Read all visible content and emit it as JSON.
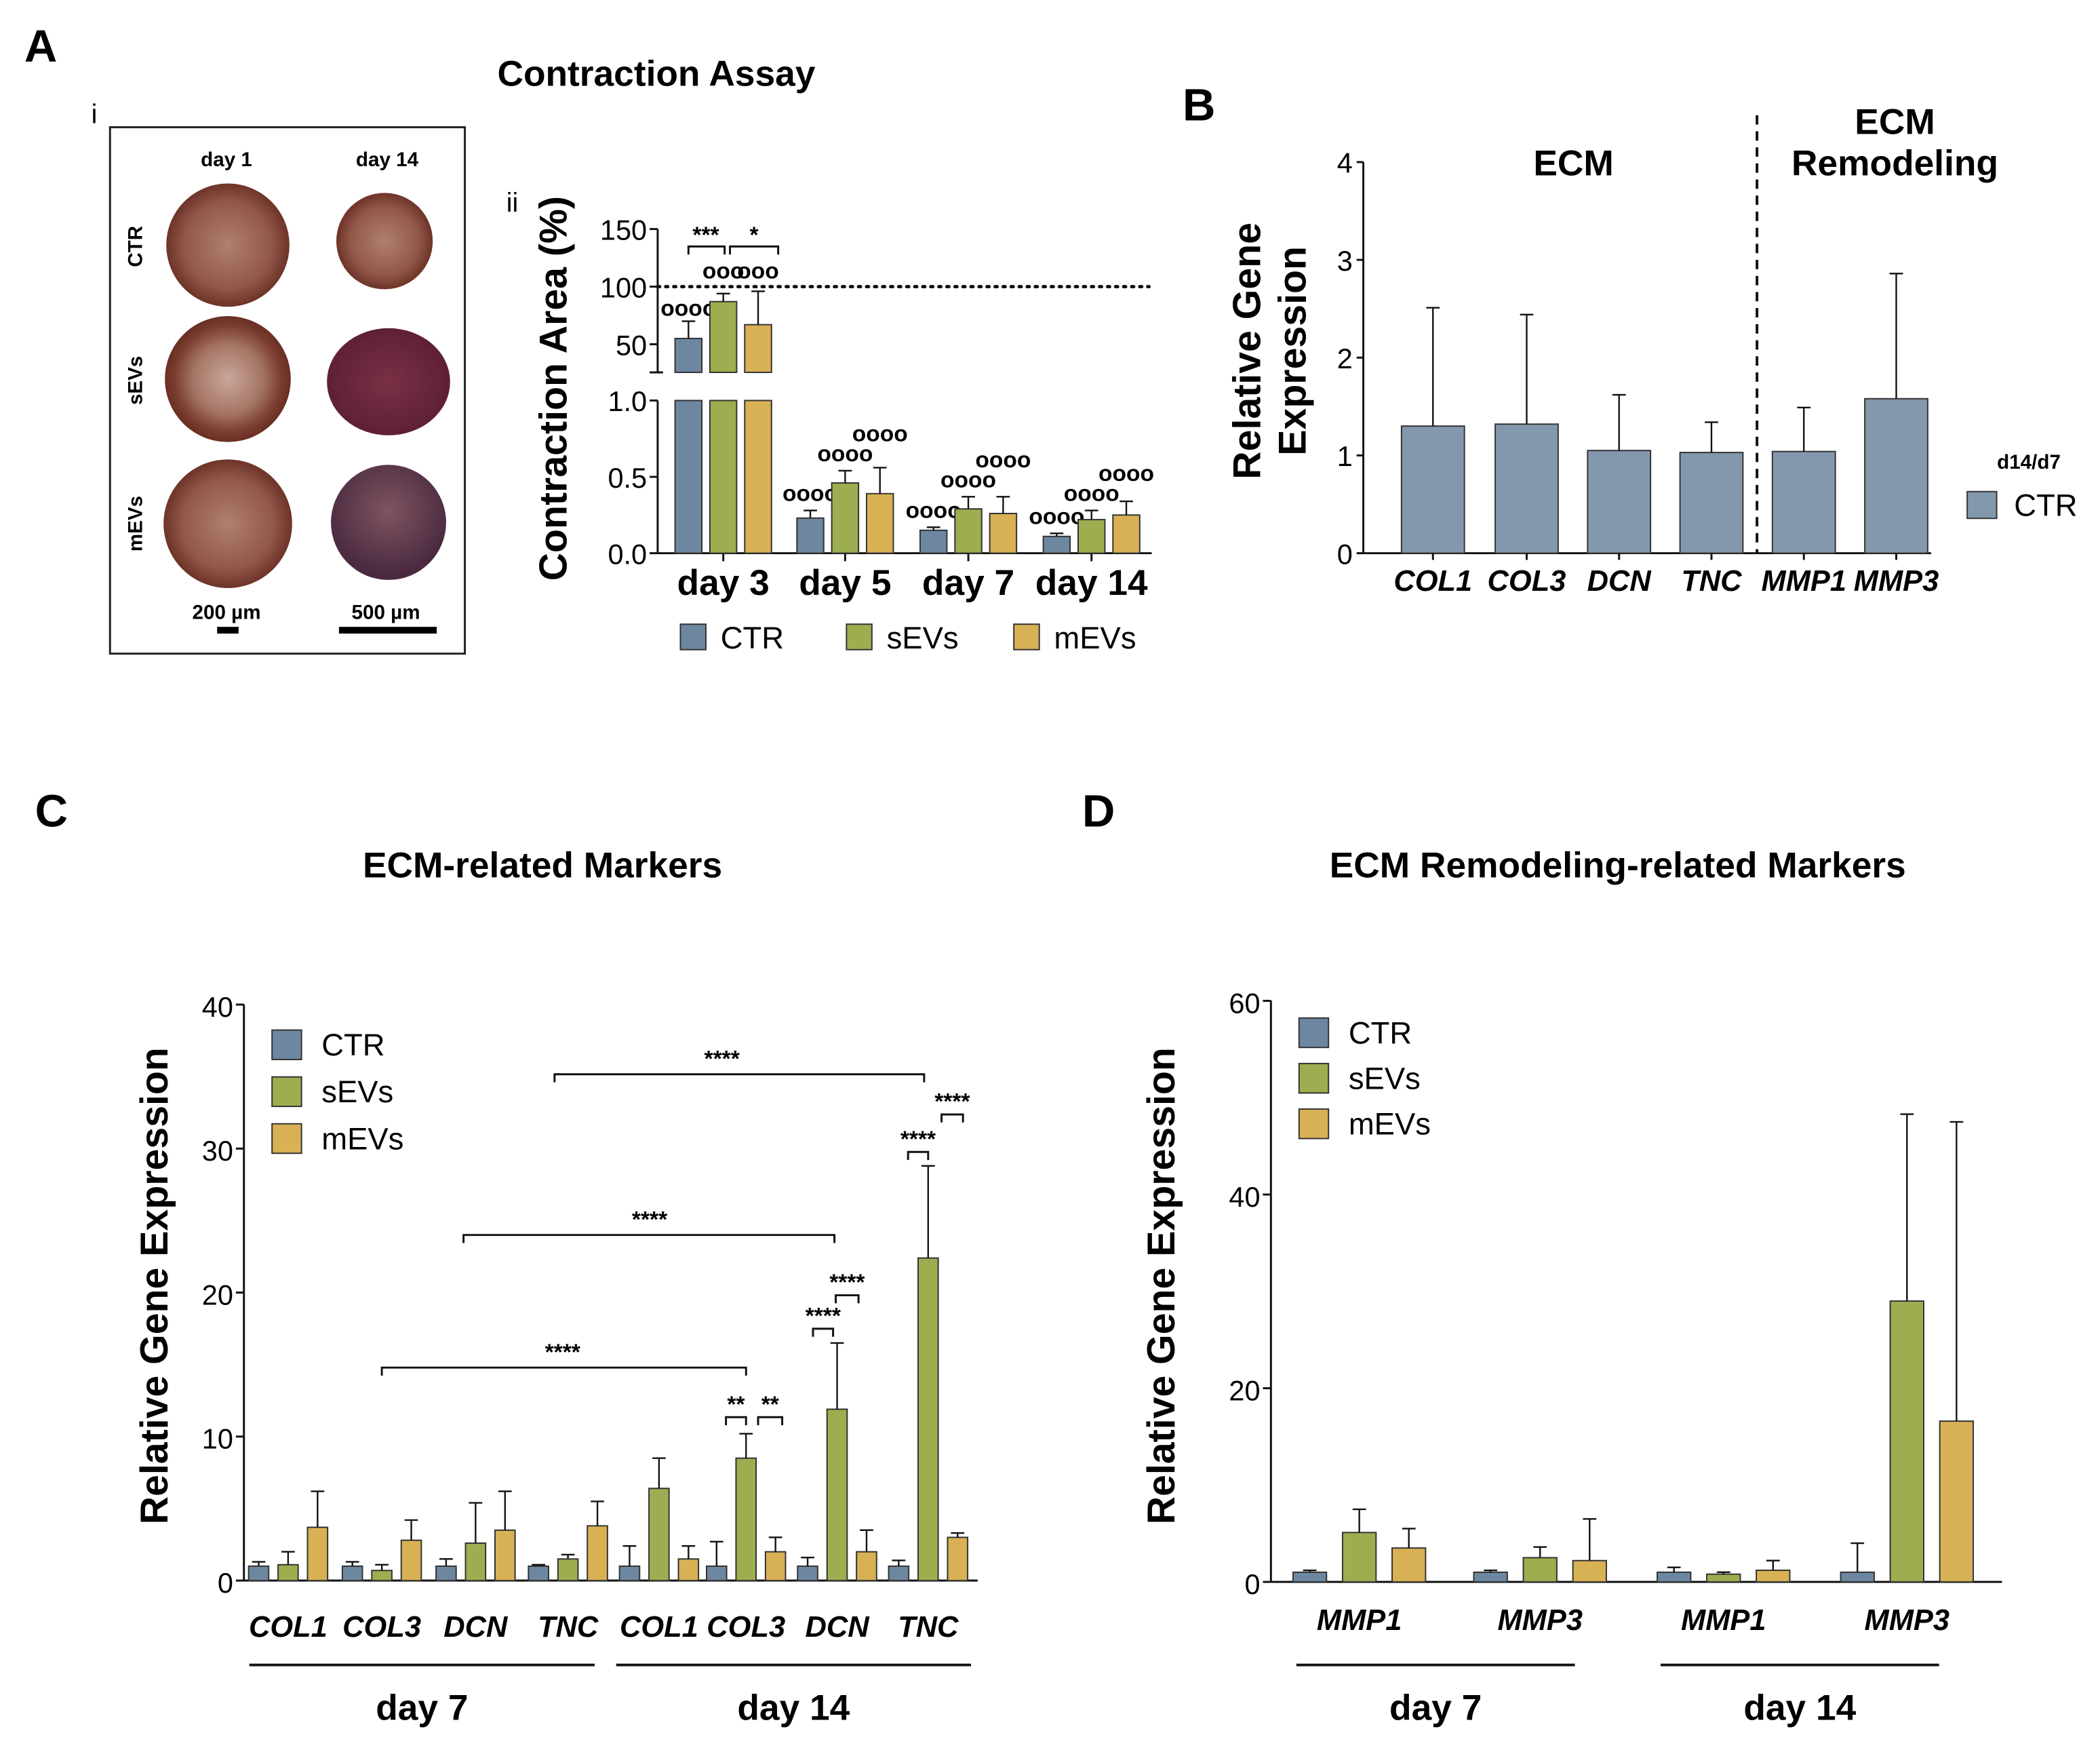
{
  "panels": {
    "A": {
      "letter": "A",
      "title": "Contraction Assay",
      "sub_i": "i",
      "sub_ii": "ii"
    },
    "B": {
      "letter": "B"
    },
    "C": {
      "letter": "C"
    },
    "D": {
      "letter": "D"
    }
  },
  "image_panel": {
    "columns": [
      "day 1",
      "day 14"
    ],
    "rows": [
      "CTR",
      "sEVs",
      "mEVs"
    ],
    "scale_bars": [
      "200 µm",
      "500 µm"
    ]
  },
  "colors": {
    "CTR": "#6d87a1",
    "CTR_ratio": "#8498ad",
    "sEVs": "#9cae50",
    "mEVs": "#d9b155",
    "tissue": "#8c4b40"
  },
  "chart_data": [
    {
      "type": "bar",
      "title": "",
      "ylabel": "Contraction Area (%)",
      "broken_axis": true,
      "y_ticks_upper": [
        "150",
        "100",
        "50"
      ],
      "y_ticks_lower": [
        "1.0",
        "0.5",
        "0.0"
      ],
      "ylim_upper": [
        25,
        150
      ],
      "ylim_lower": [
        0,
        1.0
      ],
      "reference_line": 100,
      "categories": [
        "day 3",
        "day 5",
        "day 7",
        "day 14"
      ],
      "series": [
        {
          "name": "CTR",
          "values": [
            55,
            0.23,
            0.15,
            0.11
          ],
          "errors": [
            15,
            0.05,
            0.02,
            0.02
          ],
          "markers": [
            "oooo",
            "oooo",
            "oooo",
            "oooo"
          ]
        },
        {
          "name": "sEVs",
          "values": [
            87,
            0.46,
            0.29,
            0.22
          ],
          "errors": [
            7,
            0.08,
            0.08,
            0.06
          ],
          "markers": [
            "ooo",
            "oooo",
            "oooo",
            "oooo"
          ]
        },
        {
          "name": "mEVs",
          "values": [
            67,
            0.39,
            0.26,
            0.25
          ],
          "errors": [
            29,
            0.17,
            0.11,
            0.09
          ],
          "markers": [
            "ooo",
            "oooo",
            "oooo",
            "oooo"
          ]
        }
      ],
      "significance": [
        "***",
        "*"
      ],
      "legend": "bottom"
    },
    {
      "type": "bar",
      "ylabel": [
        "Relative Gene",
        "Expression"
      ],
      "ylim": [
        0,
        4
      ],
      "y_ticks": [
        "0",
        "1",
        "2",
        "3",
        "4"
      ],
      "categories": [
        "COL1",
        "COL3",
        "DCN",
        "TNC",
        "MMP1",
        "MMP3"
      ],
      "section_labels": [
        "ECM",
        "ECM",
        "Remodeling"
      ],
      "series": [
        {
          "name": "CTR",
          "values": [
            1.3,
            1.32,
            1.05,
            1.03,
            1.04,
            1.58
          ],
          "errors": [
            1.21,
            1.12,
            0.57,
            0.31,
            0.45,
            1.28
          ]
        }
      ],
      "legend_title": "d14/d7",
      "legend": "right"
    },
    {
      "type": "bar",
      "title": "ECM-related Markers",
      "ylabel": "Relative Gene Expression",
      "ylim": [
        0,
        40
      ],
      "y_ticks": [
        "0",
        "10",
        "20",
        "30",
        "40"
      ],
      "categories": [
        "COL1",
        "COL3",
        "DCN",
        "TNC",
        "COL1",
        "COL3",
        "DCN",
        "TNC"
      ],
      "groups": [
        "day 7",
        "day 14"
      ],
      "series": [
        {
          "name": "CTR",
          "values": [
            1.0,
            1.0,
            1.0,
            1.0,
            1.0,
            1.0,
            1.0,
            1.0
          ],
          "errors": [
            0.3,
            0.3,
            0.5,
            0.1,
            1.4,
            1.7,
            0.6,
            0.4
          ]
        },
        {
          "name": "sEVs",
          "values": [
            1.1,
            0.7,
            2.6,
            1.5,
            6.4,
            8.5,
            11.9,
            22.4
          ],
          "errors": [
            0.9,
            0.4,
            2.8,
            0.3,
            2.1,
            1.7,
            4.6,
            6.4
          ]
        },
        {
          "name": "mEVs",
          "values": [
            3.7,
            2.8,
            3.5,
            3.8,
            1.5,
            2.0,
            2.0,
            3.0
          ],
          "errors": [
            2.5,
            1.4,
            2.7,
            1.7,
            0.9,
            1.0,
            1.5,
            0.3
          ]
        }
      ],
      "significance": [
        "****",
        "****",
        "****",
        "**",
        "**",
        "****",
        "****",
        "****",
        "****"
      ],
      "legend": "top-left"
    },
    {
      "type": "bar",
      "title": "ECM Remodeling-related Markers",
      "ylabel": "Relative Gene Expression",
      "ylim": [
        0,
        60
      ],
      "y_ticks": [
        "0",
        "20",
        "40",
        "60"
      ],
      "categories": [
        "MMP1",
        "MMP3",
        "MMP1",
        "MMP3"
      ],
      "groups": [
        "day 7",
        "day 14"
      ],
      "series": [
        {
          "name": "CTR",
          "values": [
            1.0,
            1.0,
            1.0,
            1.0
          ],
          "errors": [
            0.2,
            0.2,
            0.5,
            3.0
          ]
        },
        {
          "name": "sEVs",
          "values": [
            5.1,
            2.5,
            0.8,
            29.0
          ],
          "errors": [
            2.4,
            1.1,
            0.2,
            19.3
          ]
        },
        {
          "name": "mEVs",
          "values": [
            3.5,
            2.2,
            1.2,
            16.6
          ],
          "errors": [
            2.0,
            4.3,
            1.0,
            30.9
          ]
        }
      ],
      "legend": "top-left"
    }
  ]
}
